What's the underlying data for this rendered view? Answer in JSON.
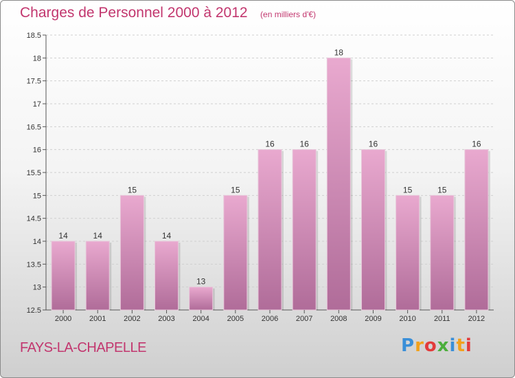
{
  "title": "Charges de Personnel 2000 à 2012",
  "subtitle": "(en milliers d'€)",
  "town": "FAYS-LA-CHAPELLE",
  "logo": {
    "text": "Proxiti"
  },
  "colors": {
    "accent": "#c2366e",
    "bar_top": "#e9a9cf",
    "bar_bottom": "#b06c99"
  },
  "chart_data": {
    "type": "bar",
    "title": "Charges de Personnel 2000 à 2012",
    "subtitle": "(en milliers d'€)",
    "xlabel": "",
    "ylabel": "",
    "categories": [
      "2000",
      "2001",
      "2002",
      "2003",
      "2004",
      "2005",
      "2006",
      "2007",
      "2008",
      "2009",
      "2010",
      "2011",
      "2012"
    ],
    "values": [
      14,
      14,
      15,
      14,
      13,
      15,
      16,
      16,
      18,
      16,
      15,
      15,
      16
    ],
    "data_labels": [
      "14",
      "14",
      "15",
      "14",
      "13",
      "15",
      "16",
      "16",
      "18",
      "16",
      "15",
      "15",
      "16"
    ],
    "ylim": [
      12.5,
      18.5
    ],
    "yticks": [
      12.5,
      13,
      13.5,
      14,
      14.5,
      15,
      15.5,
      16,
      16.5,
      17,
      17.5,
      18,
      18.5
    ],
    "ytick_labels": [
      "12.5",
      "13",
      "13.5",
      "14",
      "14.5",
      "15",
      "15.5",
      "16",
      "16.5",
      "17",
      "17.5",
      "18",
      "18.5"
    ],
    "grid": true,
    "legend": "none"
  }
}
